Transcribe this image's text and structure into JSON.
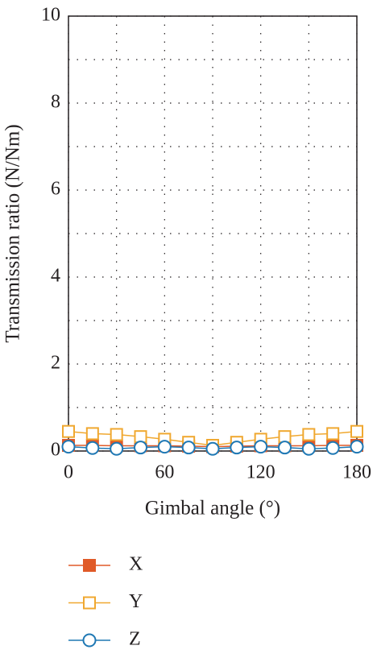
{
  "chart_data": {
    "type": "line",
    "x_label": "Gimbal angle (°)",
    "y_label": "Transmission ratio (N/Nm)",
    "x": [
      0,
      15,
      30,
      45,
      60,
      75,
      90,
      105,
      120,
      135,
      150,
      165,
      180
    ],
    "series": [
      {
        "name": "X",
        "color": "#e05a28",
        "marker": "filled-square",
        "values": [
          0.13,
          0.13,
          0.12,
          0.12,
          0.12,
          0.11,
          0.1,
          0.11,
          0.12,
          0.12,
          0.12,
          0.13,
          0.13
        ]
      },
      {
        "name": "Y",
        "color": "#f0a830",
        "marker": "open-square",
        "values": [
          0.45,
          0.4,
          0.38,
          0.33,
          0.27,
          0.2,
          0.13,
          0.2,
          0.27,
          0.33,
          0.38,
          0.4,
          0.45
        ]
      },
      {
        "name": "Z",
        "color": "#1f78b4",
        "marker": "open-circle",
        "values": [
          0.1,
          0.07,
          0.05,
          0.08,
          0.1,
          0.08,
          0.05,
          0.08,
          0.1,
          0.08,
          0.05,
          0.07,
          0.1
        ]
      }
    ],
    "xlim": [
      0,
      180
    ],
    "xticks": [
      0,
      60,
      120,
      180
    ],
    "x_minor_ticks": [
      30,
      90,
      150
    ],
    "ylim": [
      0,
      10
    ],
    "yticks": [
      0,
      2,
      4,
      6,
      8,
      10
    ],
    "y_minor_ticks": [
      1,
      3,
      5,
      7,
      9
    ],
    "grid": true,
    "legend": "below"
  }
}
